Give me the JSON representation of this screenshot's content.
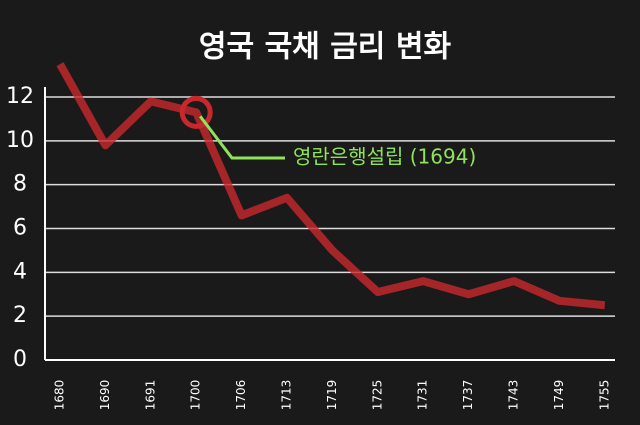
{
  "chart_data": {
    "type": "line",
    "title": "영국 국채 금리 변화",
    "categories": [
      "1680",
      "1690",
      "1691",
      "1700",
      "1706",
      "1713",
      "1719",
      "1725",
      "1731",
      "1737",
      "1743",
      "1749",
      "1755"
    ],
    "series": [
      {
        "color": "#c8282c",
        "values": [
          13.5,
          9.8,
          11.8,
          11.3,
          6.6,
          7.4,
          5.0,
          3.1,
          3.6,
          3.0,
          3.6,
          2.7,
          2.5
        ]
      }
    ],
    "ylim": [
      0,
      12
    ],
    "yticks": [
      0,
      2,
      4,
      6,
      8,
      10,
      12
    ],
    "grid": true,
    "annotation": {
      "text": "영란은행설립 (1694)",
      "color": "#8fe35a",
      "point": 3
    }
  }
}
